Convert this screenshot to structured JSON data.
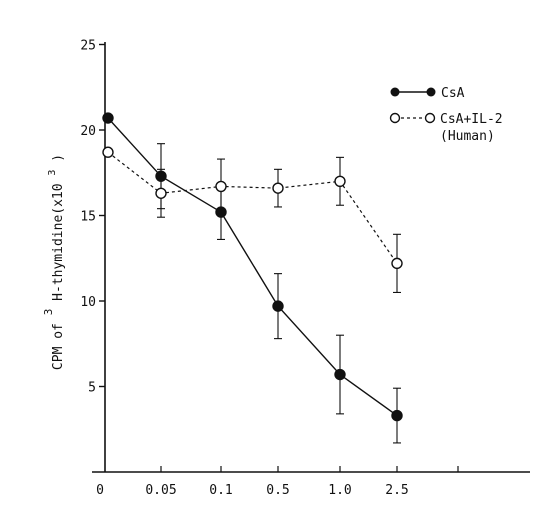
{
  "chart_data": {
    "type": "line",
    "title": "",
    "xlabel": "",
    "ylabel": "CPM of ³H-thymidine(x10³)",
    "ylabel_parts": {
      "prefix": "CPM of",
      "sup": "3",
      "main": "H-thymidine(x10",
      "exp": "3",
      "suffix": ")"
    },
    "categories": [
      "0",
      "0.05",
      "0.1",
      "0.5",
      "1.0",
      "2.5"
    ],
    "yticks": [
      "5",
      "10",
      "15",
      "20",
      "25"
    ],
    "ylim": [
      0,
      25
    ],
    "grid": false,
    "legend_position": "top-right",
    "series": [
      {
        "name": "CsA",
        "marker": "filled-circle",
        "line": "solid",
        "values": [
          20.7,
          17.3,
          15.2,
          9.7,
          5.7,
          3.3
        ],
        "errors": [
          null,
          1.9,
          1.6,
          1.9,
          2.3,
          1.6
        ]
      },
      {
        "name": "CsA+IL-2",
        "name_line2": "(Human)",
        "marker": "open-circle",
        "line": "dashed",
        "values": [
          18.7,
          16.3,
          16.7,
          16.6,
          17.0,
          12.2
        ],
        "errors": [
          null,
          1.4,
          1.6,
          1.1,
          1.4,
          1.7
        ]
      }
    ]
  }
}
